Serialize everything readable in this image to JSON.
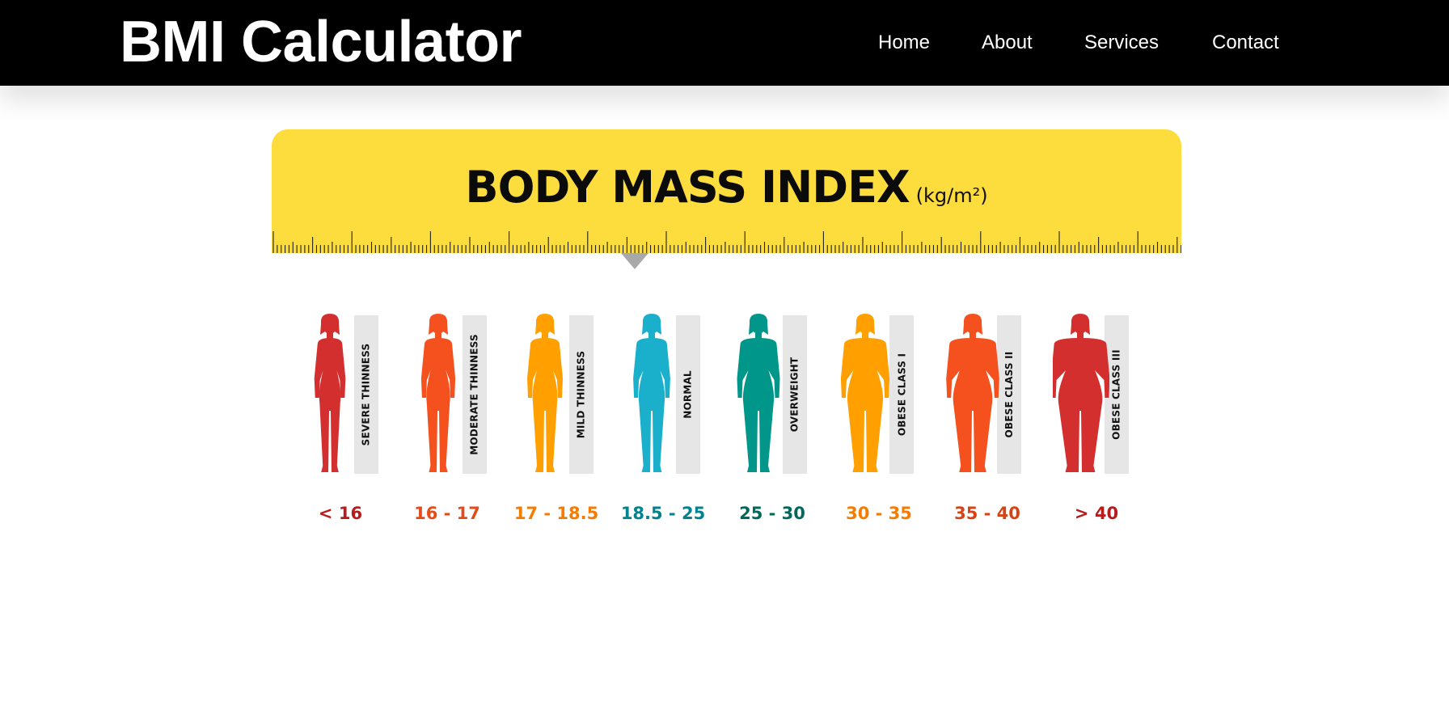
{
  "header": {
    "brand": "BMI Calculator",
    "nav": [
      "Home",
      "About",
      "Services",
      "Contact"
    ]
  },
  "infographic": {
    "title": "BODY MASS INDEX",
    "unit": "(kg/m²)",
    "banner_color": "#FDDC3E",
    "categories": [
      {
        "label": "SEVERE THINNESS",
        "range": "< 16",
        "color": "#D32F2F",
        "range_color": "#B71C1C"
      },
      {
        "label": "MODERATE THINNESS",
        "range": "16 - 17",
        "color": "#F4511E",
        "range_color": "#E64A19"
      },
      {
        "label": "MILD THINNESS",
        "range": "17 - 18.5",
        "color": "#FFA000",
        "range_color": "#F57C00"
      },
      {
        "label": "NORMAL",
        "range": "18.5 - 25",
        "color": "#1AAFCB",
        "range_color": "#00838F"
      },
      {
        "label": "OVERWEIGHT",
        "range": "25 - 30",
        "color": "#00968A",
        "range_color": "#00695C"
      },
      {
        "label": "OBESE CLASS I",
        "range": "30 - 35",
        "color": "#FFA000",
        "range_color": "#F57C00"
      },
      {
        "label": "OBESE CLASS II",
        "range": "35 - 40",
        "color": "#F4511E",
        "range_color": "#D84315"
      },
      {
        "label": "OBESE CLASS III",
        "range": "> 40",
        "color": "#D32F2F",
        "range_color": "#B71C1C"
      }
    ]
  }
}
